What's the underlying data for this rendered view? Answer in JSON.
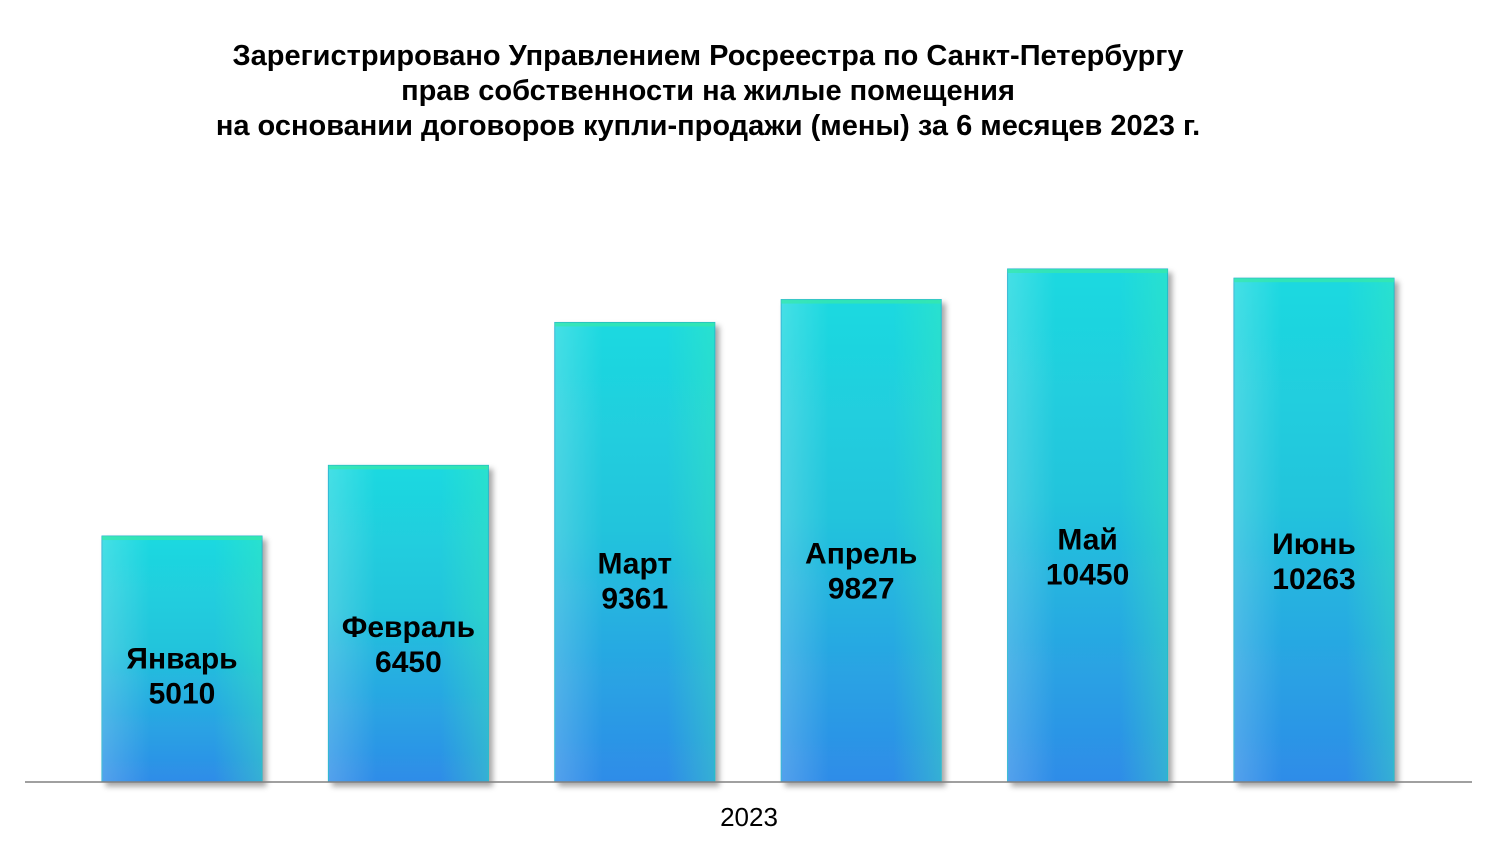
{
  "chart_data": {
    "type": "bar",
    "title_lines": [
      "Зарегистрировано Управлением Росреестра по Санкт-Петербургу",
      "прав собственности на жилые помещения",
      "на основании договоров купли-продажи (мены) за 6 месяцев 2023 г."
    ],
    "categories": [
      "Январь",
      "Февраль",
      "Март",
      "Апрель",
      "Май",
      "Июнь"
    ],
    "values": [
      5010,
      6450,
      9361,
      9827,
      10450,
      10263
    ],
    "value_labels": [
      "5010",
      "6450",
      "9361",
      "9827",
      "10450",
      "10263"
    ],
    "xlabel": "2023",
    "ylabel": "",
    "ylim": [
      0,
      12000
    ],
    "grid": false,
    "legend": "none",
    "bar_colors": {
      "top": "#1ED9E0",
      "middle": "#22C4DC",
      "bottom": "#2E8CE8",
      "edge_highlight": "#38E8A8"
    }
  }
}
